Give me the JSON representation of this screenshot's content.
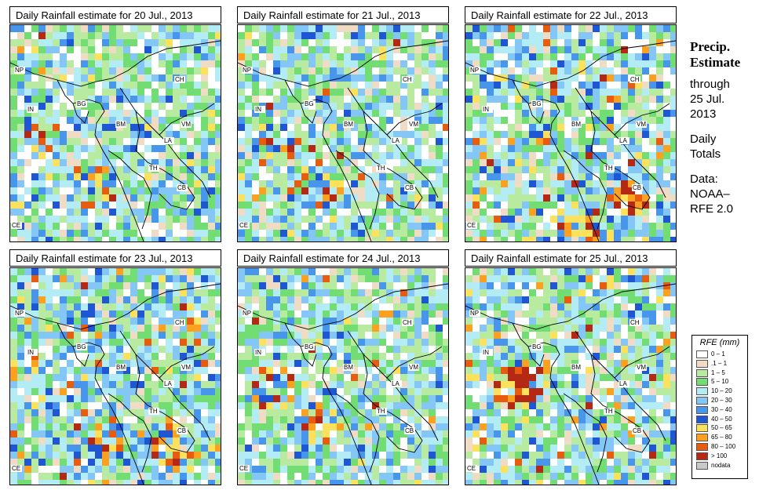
{
  "panels": [
    {
      "title": "Daily Rainfall estimate for  20 Jul., 2013",
      "intensity": "moderate"
    },
    {
      "title": "Daily Rainfall estimate for  21 Jul., 2013",
      "intensity": "moderate"
    },
    {
      "title": "Daily Rainfall estimate for  22 Jul., 2013",
      "intensity": "heavy-east"
    },
    {
      "title": "Daily Rainfall estimate for  23 Jul., 2013",
      "intensity": "heavy-south"
    },
    {
      "title": "Daily Rainfall estimate for  24 Jul., 2013",
      "intensity": "moderate"
    },
    {
      "title": "Daily Rainfall estimate for  25 Jul., 2013",
      "intensity": "heavy-bay"
    }
  ],
  "country_labels": [
    "NP",
    "IN",
    "BG",
    "BM",
    "CH",
    "VM",
    "LA",
    "TH",
    "CB",
    "CE"
  ],
  "sidebar": {
    "heading1": "Precip.",
    "heading2": "Estimate",
    "line1": "through",
    "line2": "25 Jul.",
    "line3": "2013",
    "line4": "Daily",
    "line5": "Totals",
    "line6": "Data:",
    "line7": "NOAA–",
    "line8": "RFE 2.0"
  },
  "legend": {
    "title": "RFE (mm)",
    "items": [
      {
        "label": "0 – 1",
        "color": "#ffffff"
      },
      {
        "label": ".1 – 1",
        "color": "#f0dcc4"
      },
      {
        "label": "1 – 5",
        "color": "#b8eba0"
      },
      {
        "label": "5 – 10",
        "color": "#72dd72"
      },
      {
        "label": "10 – 20",
        "color": "#b4ecf6"
      },
      {
        "label": "20 – 30",
        "color": "#84c6f6"
      },
      {
        "label": "30 – 40",
        "color": "#4896ec"
      },
      {
        "label": "40 – 50",
        "color": "#1e56d4"
      },
      {
        "label": "50 – 65",
        "color": "#fce25c"
      },
      {
        "label": "65 – 80",
        "color": "#fca020"
      },
      {
        "label": "80 – 100",
        "color": "#e85c10"
      },
      {
        "label": "> 100",
        "color": "#b42814"
      },
      {
        "label": "nodata",
        "color": "#c8c8c8"
      }
    ]
  }
}
